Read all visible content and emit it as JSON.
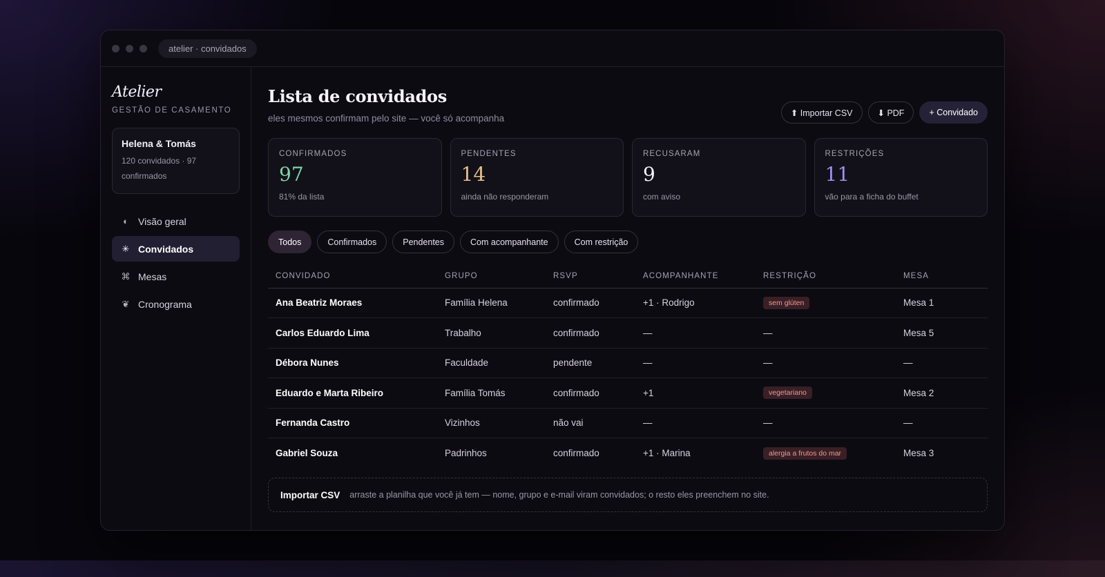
{
  "window": {
    "title": "atelier · convidados"
  },
  "sidebar": {
    "brand": "Atelier",
    "brand_sub": "GESTÃO DE CASAMENTO",
    "couple": {
      "name": "Helena & Tomás",
      "info": "120 convidados · 97 confirmados"
    },
    "items": [
      {
        "label": "Visão geral",
        "icon": "◐",
        "icon_name": "half-circle-icon"
      },
      {
        "label": "Convidados",
        "icon": "✳",
        "icon_name": "asterisk-icon",
        "active": true
      },
      {
        "label": "Mesas",
        "icon": "⌘",
        "icon_name": "command-icon"
      },
      {
        "label": "Cronograma",
        "icon": "❦",
        "icon_name": "floral-icon"
      }
    ]
  },
  "header": {
    "title": "Lista de convidados",
    "subtitle": "eles mesmos confirmam pelo site — você só acompanha",
    "actions": {
      "import_csv": "⬆ Importar CSV",
      "pdf": "⬇ PDF",
      "add_guest": "+ Convidado"
    }
  },
  "stats": [
    {
      "label": "CONFIRMADOS",
      "value": "97",
      "note": "81% da lista",
      "color": "#7ed6a8"
    },
    {
      "label": "PENDENTES",
      "value": "14",
      "note": "ainda não responderam",
      "color": "#e8c08c"
    },
    {
      "label": "RECUSARAM",
      "value": "9",
      "note": "com aviso",
      "color": "#f3f0fa"
    },
    {
      "label": "RESTRIÇÕES",
      "value": "11",
      "note": "vão para a ficha do buffet",
      "color": "#a88cf0"
    }
  ],
  "filters": [
    "Todos",
    "Confirmados",
    "Pendentes",
    "Com acompanhante",
    "Com restrição"
  ],
  "table": {
    "columns": [
      "CONVIDADO",
      "GRUPO",
      "RSVP",
      "ACOMPANHANTE",
      "RESTRIÇÃO",
      "MESA"
    ],
    "rows": [
      {
        "guest": "Ana Beatriz Moraes",
        "group": "Família Helena",
        "rsvp": "confirmado",
        "companion": "+1 · Rodrigo",
        "restriction": "sem glúten",
        "table": "Mesa 1"
      },
      {
        "guest": "Carlos Eduardo Lima",
        "group": "Trabalho",
        "rsvp": "confirmado",
        "companion": "—",
        "restriction": "—",
        "table": "Mesa 5"
      },
      {
        "guest": "Débora Nunes",
        "group": "Faculdade",
        "rsvp": "pendente",
        "companion": "—",
        "restriction": "—",
        "table": "—"
      },
      {
        "guest": "Eduardo e Marta Ribeiro",
        "group": "Família Tomás",
        "rsvp": "confirmado",
        "companion": "+1",
        "restriction": "vegetariano",
        "table": "Mesa 2"
      },
      {
        "guest": "Fernanda Castro",
        "group": "Vizinhos",
        "rsvp": "não vai",
        "companion": "—",
        "restriction": "—",
        "table": "—"
      },
      {
        "guest": "Gabriel Souza",
        "group": "Padrinhos",
        "rsvp": "confirmado",
        "companion": "+1 · Marina",
        "restriction": "alergia a frutos do mar",
        "table": "Mesa 3"
      }
    ]
  },
  "import_box": {
    "title": "Importar CSV",
    "text": "arraste a planilha que você já tem — nome, grupo e e-mail viram convidados; o resto eles preenchem no site."
  }
}
